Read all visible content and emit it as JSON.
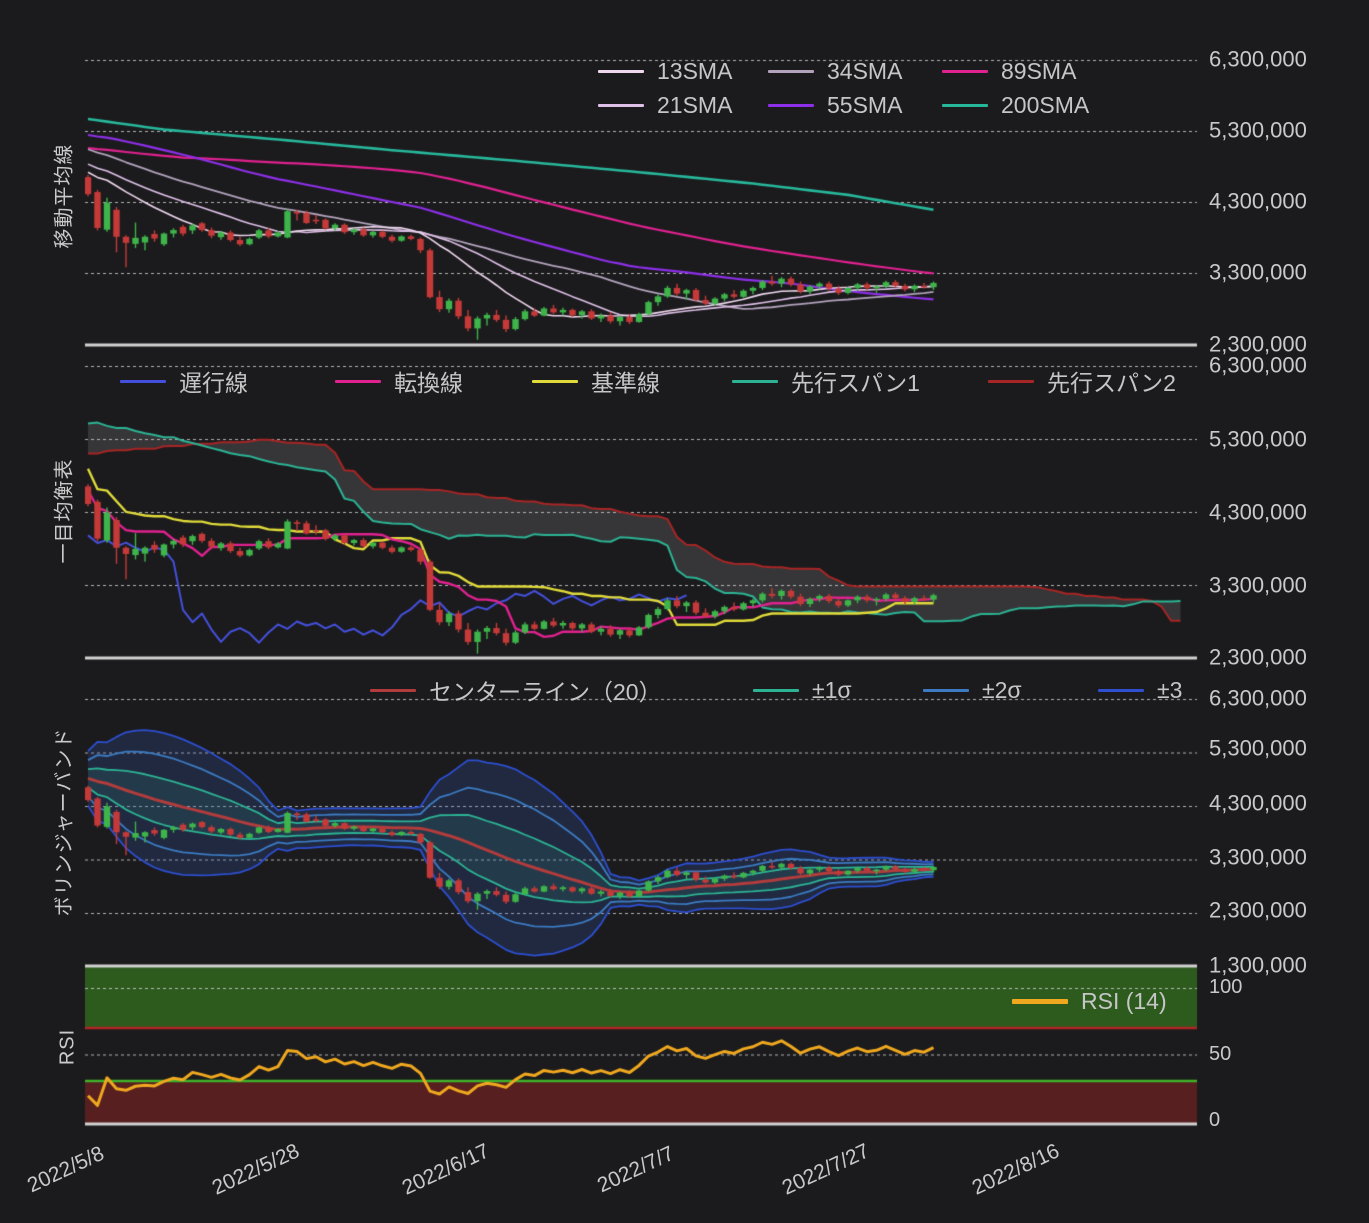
{
  "chart_data": {
    "type": "candlestick",
    "description": "Japanese technical-analysis chart with four stacked panels sharing one daily time axis: moving averages, Ichimoku, Bollinger bands and RSI.",
    "panel_titles": {
      "sma": "移動平均線",
      "ichimoku": "一目均衡表",
      "bollinger": "ボリンジャーバンド",
      "rsi": "RSI"
    },
    "legends": {
      "sma": [
        {
          "label": "13SMA",
          "color": "#efd8ef"
        },
        {
          "label": "34SMA",
          "color": "#b2a2bc"
        },
        {
          "label": "89SMA",
          "color": "#e02190"
        },
        {
          "label": "21SMA",
          "color": "#dfc0e8"
        },
        {
          "label": "55SMA",
          "color": "#8d2fe8"
        },
        {
          "label": "200SMA",
          "color": "#27b79b"
        }
      ],
      "ichimoku": [
        {
          "label": "遅行線",
          "color": "#4450dd"
        },
        {
          "label": "転換線",
          "color": "#e0218f"
        },
        {
          "label": "基準線",
          "color": "#e0da3a"
        },
        {
          "label": "先行スパン1",
          "color": "#2cb394"
        },
        {
          "label": "先行スパン2",
          "color": "#a82525"
        }
      ],
      "bollinger": [
        {
          "label": "センターライン（20）",
          "color": "#b23c3c"
        },
        {
          "label": "±1σ",
          "color": "#2cb394"
        },
        {
          "label": "±2σ",
          "color": "#3c7bc2"
        },
        {
          "label": "±3",
          "color": "#2d4fd0"
        }
      ],
      "rsi": [
        {
          "label": "RSI (14)",
          "color": "#f0a81f"
        }
      ]
    },
    "x_axis": {
      "tick_labels": [
        "2022/5/8",
        "2022/5/28",
        "2022/6/17",
        "2022/7/7",
        "2022/7/27",
        "2022/8/16"
      ],
      "tick_candle_index": [
        1,
        21,
        41,
        61,
        81,
        101
      ]
    },
    "y_axis": {
      "price_tick_labels": [
        "6,300,000",
        "5,300,000",
        "4,300,000",
        "3,300,000",
        "2,300,000"
      ],
      "panel3_bottom_label": "1,300,000",
      "rsi_tick_labels": [
        "100",
        "50",
        "0"
      ]
    },
    "candles": {
      "interval": "daily",
      "start_date": "2022/5/7",
      "unit": "thousand JPY",
      "ohlc": [
        [
          4650,
          4680,
          4380,
          4410
        ],
        [
          4440,
          4470,
          3900,
          3935
        ],
        [
          3910,
          4360,
          3880,
          4290
        ],
        [
          4190,
          4230,
          3590,
          3810
        ],
        [
          3810,
          3830,
          3380,
          3725
        ],
        [
          3710,
          4010,
          3650,
          3795
        ],
        [
          3730,
          3830,
          3620,
          3810
        ],
        [
          3850,
          3900,
          3740,
          3785
        ],
        [
          3705,
          3870,
          3680,
          3855
        ],
        [
          3855,
          3930,
          3800,
          3905
        ],
        [
          3950,
          3980,
          3820,
          3855
        ],
        [
          3900,
          3990,
          3850,
          3970
        ],
        [
          4000,
          4020,
          3880,
          3905
        ],
        [
          3905,
          3940,
          3790,
          3825
        ],
        [
          3805,
          3890,
          3770,
          3870
        ],
        [
          3870,
          3900,
          3740,
          3765
        ],
        [
          3765,
          3810,
          3680,
          3705
        ],
        [
          3705,
          3800,
          3690,
          3780
        ],
        [
          3800,
          3920,
          3780,
          3900
        ],
        [
          3900,
          3940,
          3790,
          3815
        ],
        [
          3815,
          3890,
          3800,
          3870
        ],
        [
          3800,
          4200,
          3790,
          4170
        ],
        [
          4160,
          4190,
          4040,
          4150
        ],
        [
          4145,
          4180,
          3990,
          4005
        ],
        [
          4050,
          4120,
          3990,
          4040
        ],
        [
          4050,
          4070,
          3910,
          3930
        ],
        [
          3930,
          4000,
          3900,
          3980
        ],
        [
          3980,
          4000,
          3850,
          3875
        ],
        [
          3875,
          3930,
          3840,
          3915
        ],
        [
          3915,
          3940,
          3810,
          3830
        ],
        [
          3830,
          3890,
          3800,
          3880
        ],
        [
          3880,
          3900,
          3790,
          3810
        ],
        [
          3810,
          3840,
          3730,
          3755
        ],
        [
          3755,
          3830,
          3740,
          3815
        ],
        [
          3815,
          3840,
          3760,
          3780
        ],
        [
          3780,
          3800,
          3580,
          3620
        ],
        [
          3620,
          3650,
          2940,
          2960
        ],
        [
          2960,
          3050,
          2750,
          2790
        ],
        [
          2790,
          2940,
          2740,
          2910
        ],
        [
          2910,
          2950,
          2650,
          2690
        ],
        [
          2690,
          2780,
          2480,
          2520
        ],
        [
          2520,
          2690,
          2360,
          2660
        ],
        [
          2660,
          2740,
          2560,
          2710
        ],
        [
          2710,
          2780,
          2610,
          2640
        ],
        [
          2640,
          2700,
          2470,
          2510
        ],
        [
          2510,
          2680,
          2490,
          2650
        ],
        [
          2650,
          2790,
          2630,
          2760
        ],
        [
          2760,
          2800,
          2680,
          2700
        ],
        [
          2700,
          2820,
          2690,
          2800
        ],
        [
          2800,
          2850,
          2720,
          2745
        ],
        [
          2745,
          2810,
          2700,
          2780
        ],
        [
          2780,
          2800,
          2680,
          2705
        ],
        [
          2705,
          2780,
          2660,
          2760
        ],
        [
          2760,
          2790,
          2640,
          2660
        ],
        [
          2660,
          2730,
          2610,
          2700
        ],
        [
          2700,
          2750,
          2590,
          2620
        ],
        [
          2620,
          2700,
          2560,
          2680
        ],
        [
          2680,
          2720,
          2580,
          2610
        ],
        [
          2610,
          2740,
          2600,
          2720
        ],
        [
          2720,
          2910,
          2700,
          2890
        ],
        [
          2890,
          3000,
          2840,
          2970
        ],
        [
          2970,
          3120,
          2950,
          3090
        ],
        [
          3090,
          3150,
          2980,
          3010
        ],
        [
          3010,
          3080,
          2930,
          3060
        ],
        [
          3060,
          3090,
          2890,
          2920
        ],
        [
          2920,
          2980,
          2850,
          2870
        ],
        [
          2870,
          2960,
          2840,
          2940
        ],
        [
          2940,
          3020,
          2900,
          3000
        ],
        [
          3000,
          3060,
          2940,
          2965
        ],
        [
          2965,
          3070,
          2950,
          3050
        ],
        [
          3050,
          3110,
          3000,
          3090
        ],
        [
          3090,
          3200,
          3060,
          3180
        ],
        [
          3180,
          3260,
          3120,
          3150
        ],
        [
          3150,
          3240,
          3100,
          3220
        ],
        [
          3220,
          3250,
          3110,
          3140
        ],
        [
          3140,
          3180,
          3010,
          3040
        ],
        [
          3040,
          3130,
          3000,
          3110
        ],
        [
          3110,
          3170,
          3070,
          3150
        ],
        [
          3150,
          3180,
          3050,
          3080
        ],
        [
          3080,
          3120,
          2990,
          3020
        ],
        [
          3020,
          3100,
          3000,
          3090
        ],
        [
          3090,
          3160,
          3050,
          3140
        ],
        [
          3140,
          3170,
          3060,
          3090
        ],
        [
          3090,
          3130,
          3020,
          3110
        ],
        [
          3110,
          3190,
          3080,
          3170
        ],
        [
          3170,
          3200,
          3090,
          3120
        ],
        [
          3120,
          3150,
          3040,
          3070
        ],
        [
          3070,
          3140,
          3030,
          3120
        ],
        [
          3120,
          3160,
          3080,
          3100
        ],
        [
          3100,
          3180,
          3060,
          3160
        ]
      ]
    },
    "indicators": {
      "sma_computed_periods": [
        13,
        21,
        34,
        55,
        89
      ],
      "sma200_polyline": [
        [
          0,
          5470
        ],
        [
          8,
          5320
        ],
        [
          20,
          5180
        ],
        [
          32,
          5030
        ],
        [
          45,
          4880
        ],
        [
          58,
          4720
        ],
        [
          70,
          4560
        ],
        [
          80,
          4400
        ],
        [
          89,
          4190
        ]
      ],
      "ichimoku": {
        "tenkan": 9,
        "kijun": 26,
        "senkou_b": 52,
        "displacement": 26
      },
      "bollinger": {
        "period": 20,
        "sigmas": [
          1,
          2,
          3
        ]
      },
      "rsi": {
        "period": 14,
        "overbought": 70,
        "oversold": 30
      },
      "warmup_closes": [
        4400,
        4430,
        4380,
        4450,
        4500,
        4470,
        4520,
        4560,
        4510,
        4580,
        4620,
        4590,
        4640,
        4680,
        4650,
        4700,
        4730,
        4690,
        4710,
        4760,
        4820,
        4880,
        4950,
        5020,
        5080,
        5150,
        5230,
        5300,
        5380,
        5450,
        5520,
        5580,
        5640,
        5700,
        5750,
        5790,
        5820,
        5780,
        5800,
        5760,
        5700,
        5650,
        5680,
        5600,
        5550,
        5580,
        5500,
        5450,
        5480,
        5420,
        5380,
        5400,
        5350,
        5380,
        5300,
        5250,
        5280,
        5200,
        5150,
        5100,
        5050,
        5080,
        5000,
        4950,
        4900,
        4930,
        4870,
        4820,
        4850,
        4800,
        4760,
        4790,
        4720,
        4680,
        4700,
        4660,
        4620,
        4660
      ]
    },
    "colors": {
      "background": "#1b1b1d",
      "candle_up": "#3eb44a",
      "candle_down": "#c53a38",
      "grid": "#cdcdcd",
      "frame": "#d2d2d2",
      "text": "#c9c9c9",
      "ichimoku_cloud_fill": "rgba(200,200,200,0.16)",
      "bb_fill_outer": "rgba(50,90,190,0.22)",
      "bb_fill_inner": "rgba(60,160,140,0.14)",
      "rsi_overbought_zone": "#2d5b1e",
      "rsi_oversold_zone": "#571f1f",
      "rsi_70_line": "#b02525",
      "rsi_30_line": "#3fb32a"
    }
  }
}
